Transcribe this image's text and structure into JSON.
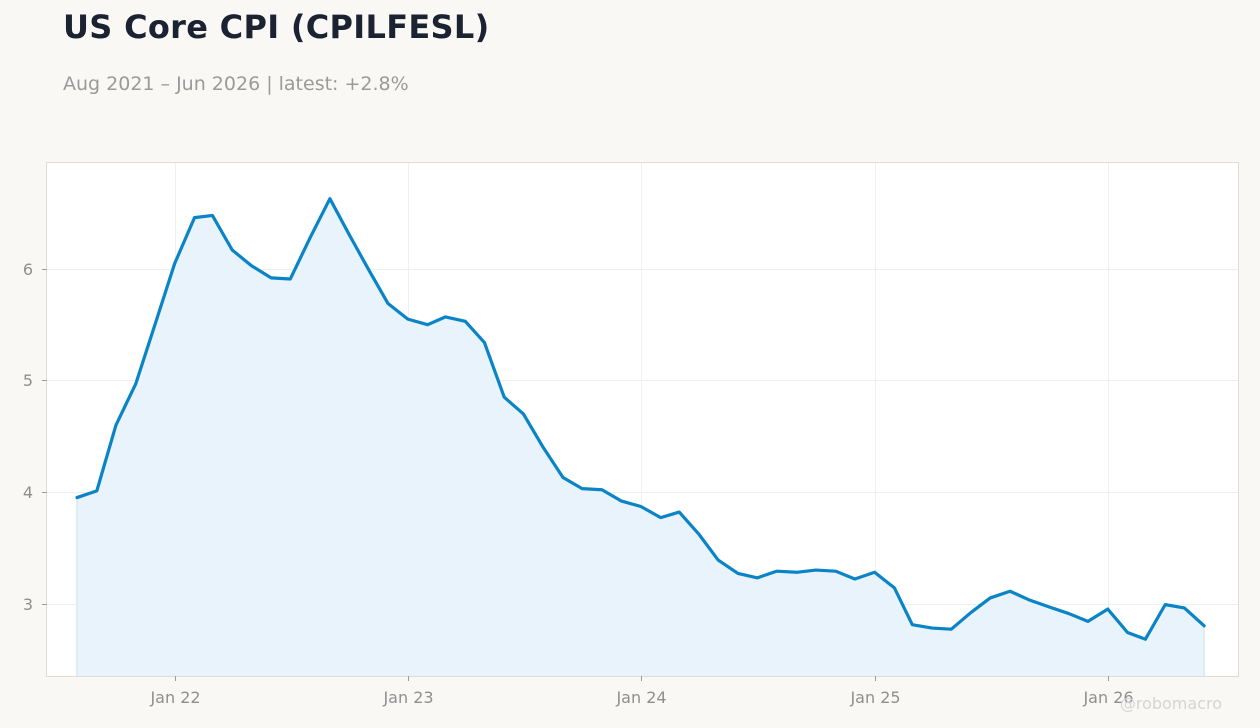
{
  "header": {
    "title": "US Core CPI (CPILFESL)",
    "subtitle": "Aug 2021 – Jun 2026 | latest: +2.8%"
  },
  "watermark": "@robomacro",
  "colors": {
    "background": "#f9f8f5",
    "plot_background": "#ffffff",
    "line": "#0a84c6",
    "fill": "#e8f3fb",
    "grid": "#efefef",
    "title": "#1b2333",
    "muted_text": "#9a9a9a"
  },
  "chart_data": {
    "type": "area",
    "title": "US Core CPI (CPILFESL)",
    "subtitle": "Aug 2021 – Jun 2026 | latest: +2.8%",
    "xlabel": "",
    "ylabel": "",
    "grid": true,
    "ylim": [
      2.35,
      6.95
    ],
    "xlim": [
      "2021-06-15",
      "2026-07-24"
    ],
    "y_ticks": [
      3,
      4,
      5,
      6
    ],
    "x_ticks": [
      {
        "date": "2022-01-01",
        "label": "Jan 22"
      },
      {
        "date": "2023-01-01",
        "label": "Jan 23"
      },
      {
        "date": "2024-01-01",
        "label": "Jan 24"
      },
      {
        "date": "2025-01-01",
        "label": "Jan 25"
      },
      {
        "date": "2026-01-01",
        "label": "Jan 26"
      }
    ],
    "series": [
      {
        "x": [
          "2021-08-01",
          "2021-09-01",
          "2021-10-01",
          "2021-11-01",
          "2021-12-01",
          "2022-01-01",
          "2022-02-01",
          "2022-03-01",
          "2022-04-01",
          "2022-05-01",
          "2022-06-01",
          "2022-07-01",
          "2022-08-01",
          "2022-09-01",
          "2022-10-01",
          "2022-11-01",
          "2022-12-01",
          "2023-01-01",
          "2023-02-01",
          "2023-03-01",
          "2023-04-01",
          "2023-05-01",
          "2023-06-01",
          "2023-07-01",
          "2023-08-01",
          "2023-09-01",
          "2023-10-01",
          "2023-11-01",
          "2023-12-01",
          "2024-01-01",
          "2024-02-01",
          "2024-03-01",
          "2024-04-01",
          "2024-05-01",
          "2024-06-01",
          "2024-07-01",
          "2024-08-01",
          "2024-09-01",
          "2024-10-01",
          "2024-11-01",
          "2024-12-01",
          "2025-01-01",
          "2025-02-01",
          "2025-03-01",
          "2025-04-01",
          "2025-05-01",
          "2025-06-01",
          "2025-07-01",
          "2025-08-01",
          "2025-09-01",
          "2025-10-01",
          "2025-11-01",
          "2025-12-01",
          "2026-01-01",
          "2026-02-01",
          "2026-03-01",
          "2026-04-01",
          "2026-05-01",
          "2026-06-01"
        ],
        "values": [
          3.95,
          4.01,
          4.6,
          4.97,
          5.5,
          6.05,
          6.46,
          6.48,
          6.17,
          6.03,
          5.92,
          5.91,
          6.28,
          6.63,
          6.31,
          5.99,
          5.69,
          5.55,
          5.5,
          5.57,
          5.53,
          5.34,
          4.85,
          4.7,
          4.4,
          4.13,
          4.03,
          4.02,
          3.92,
          3.87,
          3.77,
          3.82,
          3.62,
          3.39,
          3.27,
          3.23,
          3.29,
          3.28,
          3.3,
          3.29,
          3.22,
          3.28,
          3.14,
          2.81,
          2.78,
          2.77,
          2.92,
          3.05,
          3.11,
          3.03,
          2.97,
          2.91,
          2.84,
          2.95,
          2.74,
          2.68,
          2.99,
          2.96,
          2.8
        ]
      }
    ]
  }
}
